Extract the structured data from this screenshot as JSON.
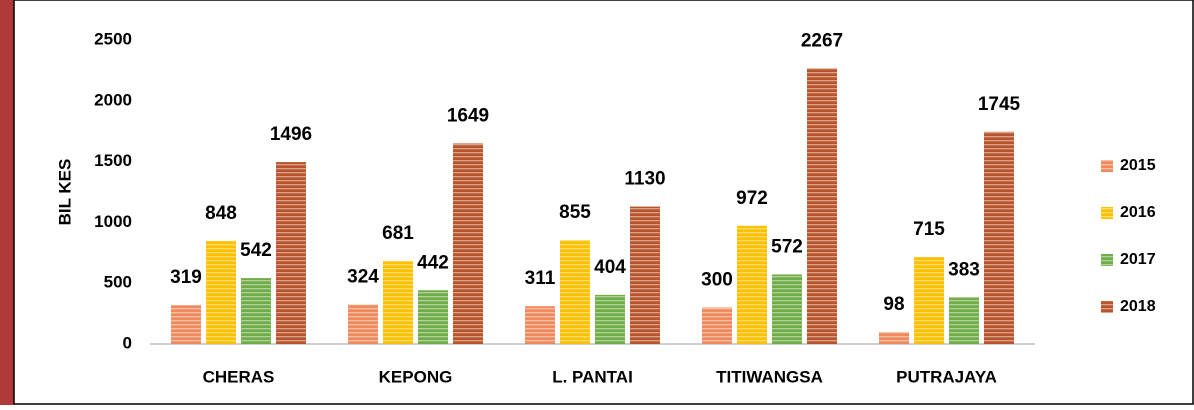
{
  "chart_data": {
    "type": "bar",
    "y_label": "BIL KES",
    "categories": [
      "CHERAS",
      "KEPONG",
      "L. PANTAI",
      "TITIWANGSA",
      "PUTRAJAYA"
    ],
    "series": [
      {
        "name": "2015",
        "color": "#f08a5d",
        "values": [
          319,
          324,
          311,
          300,
          98
        ]
      },
      {
        "name": "2016",
        "color": "#ffc000",
        "values": [
          848,
          681,
          855,
          972,
          715
        ]
      },
      {
        "name": "2017",
        "color": "#70ad47",
        "values": [
          542,
          442,
          404,
          572,
          383
        ]
      },
      {
        "name": "2018",
        "color": "#b8542b",
        "values": [
          1496,
          1649,
          1130,
          2267,
          1745
        ]
      }
    ],
    "ylim": [
      0,
      2500
    ],
    "yticks": [
      0,
      500,
      1000,
      1500,
      2000,
      2500
    ],
    "grid": false,
    "legend": "right"
  }
}
